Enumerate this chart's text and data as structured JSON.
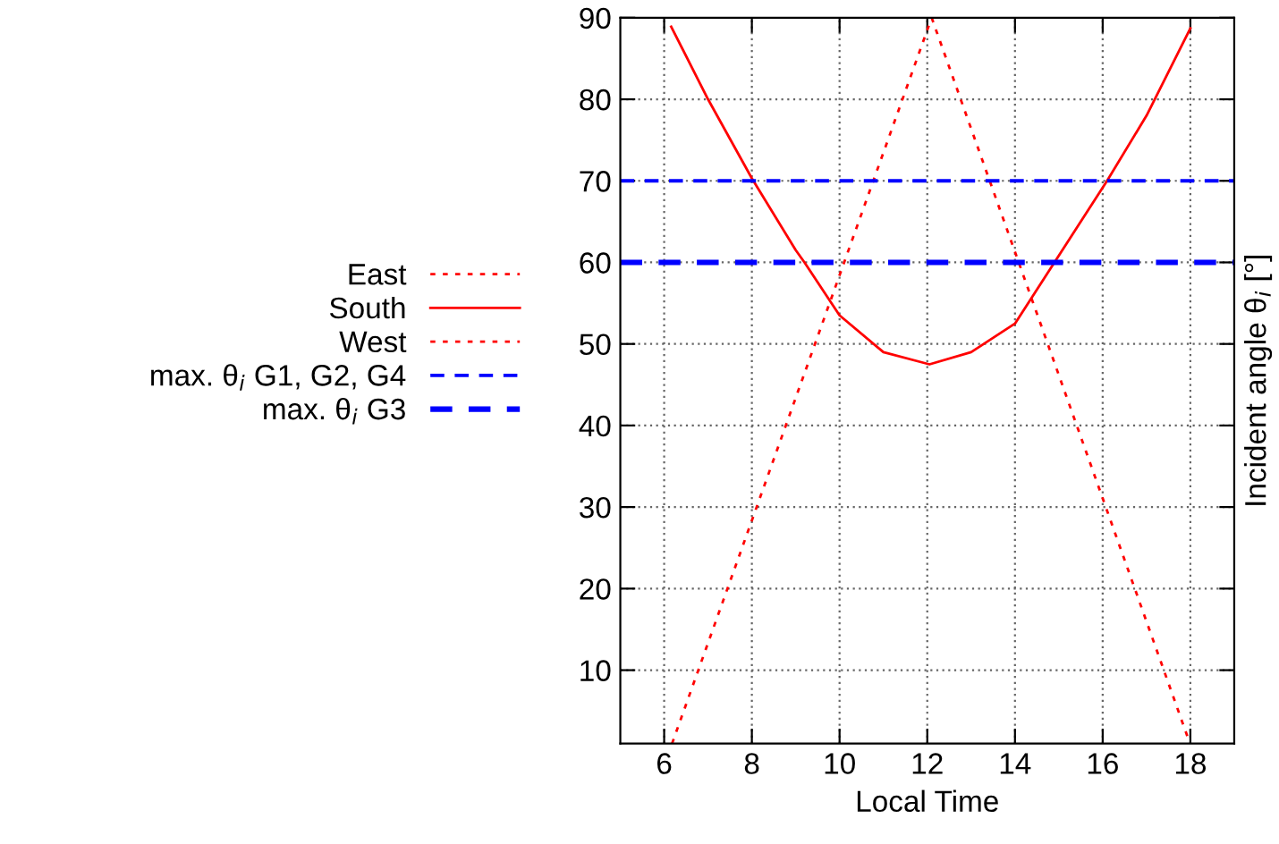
{
  "chart_data": {
    "type": "line",
    "xlabel": "Local Time",
    "ylabel": "Incident angle θ$_{i}$ [°]",
    "xlim": [
      5,
      19
    ],
    "ylim": [
      1,
      90
    ],
    "xticks": [
      6,
      8,
      10,
      12,
      14,
      16,
      18
    ],
    "yticks": [
      10,
      20,
      30,
      40,
      50,
      60,
      70,
      80,
      90
    ],
    "grid": true,
    "legend": "left",
    "marker": "none",
    "series": [
      {
        "name": "East",
        "color": "#ff0000",
        "line_style": "dotted",
        "x": [
          6.18,
          12.1
        ],
        "values": [
          1,
          90
        ]
      },
      {
        "name": "South",
        "color": "#ff0000",
        "line_style": "solid",
        "x": [
          6.16,
          7,
          8,
          9,
          9.2,
          10,
          11,
          12.05,
          13,
          14,
          14.9,
          16.1,
          17,
          18
        ],
        "values": [
          88.9,
          80,
          70.3,
          61.5,
          60,
          53.5,
          49,
          47.5,
          49,
          52.5,
          60,
          70,
          78,
          88.7
        ]
      },
      {
        "name": "West",
        "color": "#ff0000",
        "line_style": "dotted",
        "x": [
          12.1,
          17.97
        ],
        "values": [
          90,
          1.3
        ]
      },
      {
        "name": "max. θ$_{i}$ G1, G2, G4",
        "color": "#0000ff",
        "line_style": "dashed",
        "x": [
          5,
          19
        ],
        "values": [
          70,
          70
        ]
      },
      {
        "name": "max. θ$_{i}$ G3",
        "color": "#0000ff",
        "line_style": "dashed",
        "x": [
          5,
          19
        ],
        "values": [
          60,
          60
        ]
      }
    ]
  }
}
